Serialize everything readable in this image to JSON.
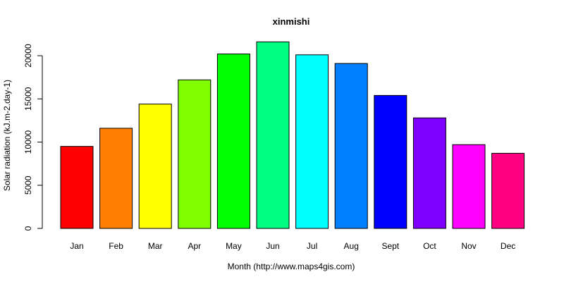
{
  "chart_data": {
    "type": "bar",
    "title": "xinmishi",
    "xlabel": "Month (http://www.maps4gis.com)",
    "ylabel": "Solar radiation (kJ.m-2.day-1)",
    "categories": [
      "Jan",
      "Feb",
      "Mar",
      "Apr",
      "May",
      "Jun",
      "Jul",
      "Aug",
      "Sept",
      "Oct",
      "Nov",
      "Dec"
    ],
    "values": [
      9500,
      11600,
      14400,
      17200,
      20200,
      21600,
      20100,
      19100,
      15400,
      12800,
      9700,
      8700
    ],
    "colors": [
      "#FF0000",
      "#FF8000",
      "#FFFF00",
      "#80FF00",
      "#00FF00",
      "#00FF80",
      "#00FFFF",
      "#0080FF",
      "#0000FF",
      "#8000FF",
      "#FF00FF",
      "#FF0080"
    ],
    "yticks": [
      "0",
      "5000",
      "10000",
      "15000",
      "20000"
    ],
    "ylim": [
      0,
      21600
    ],
    "grid": false,
    "legend": "none"
  }
}
